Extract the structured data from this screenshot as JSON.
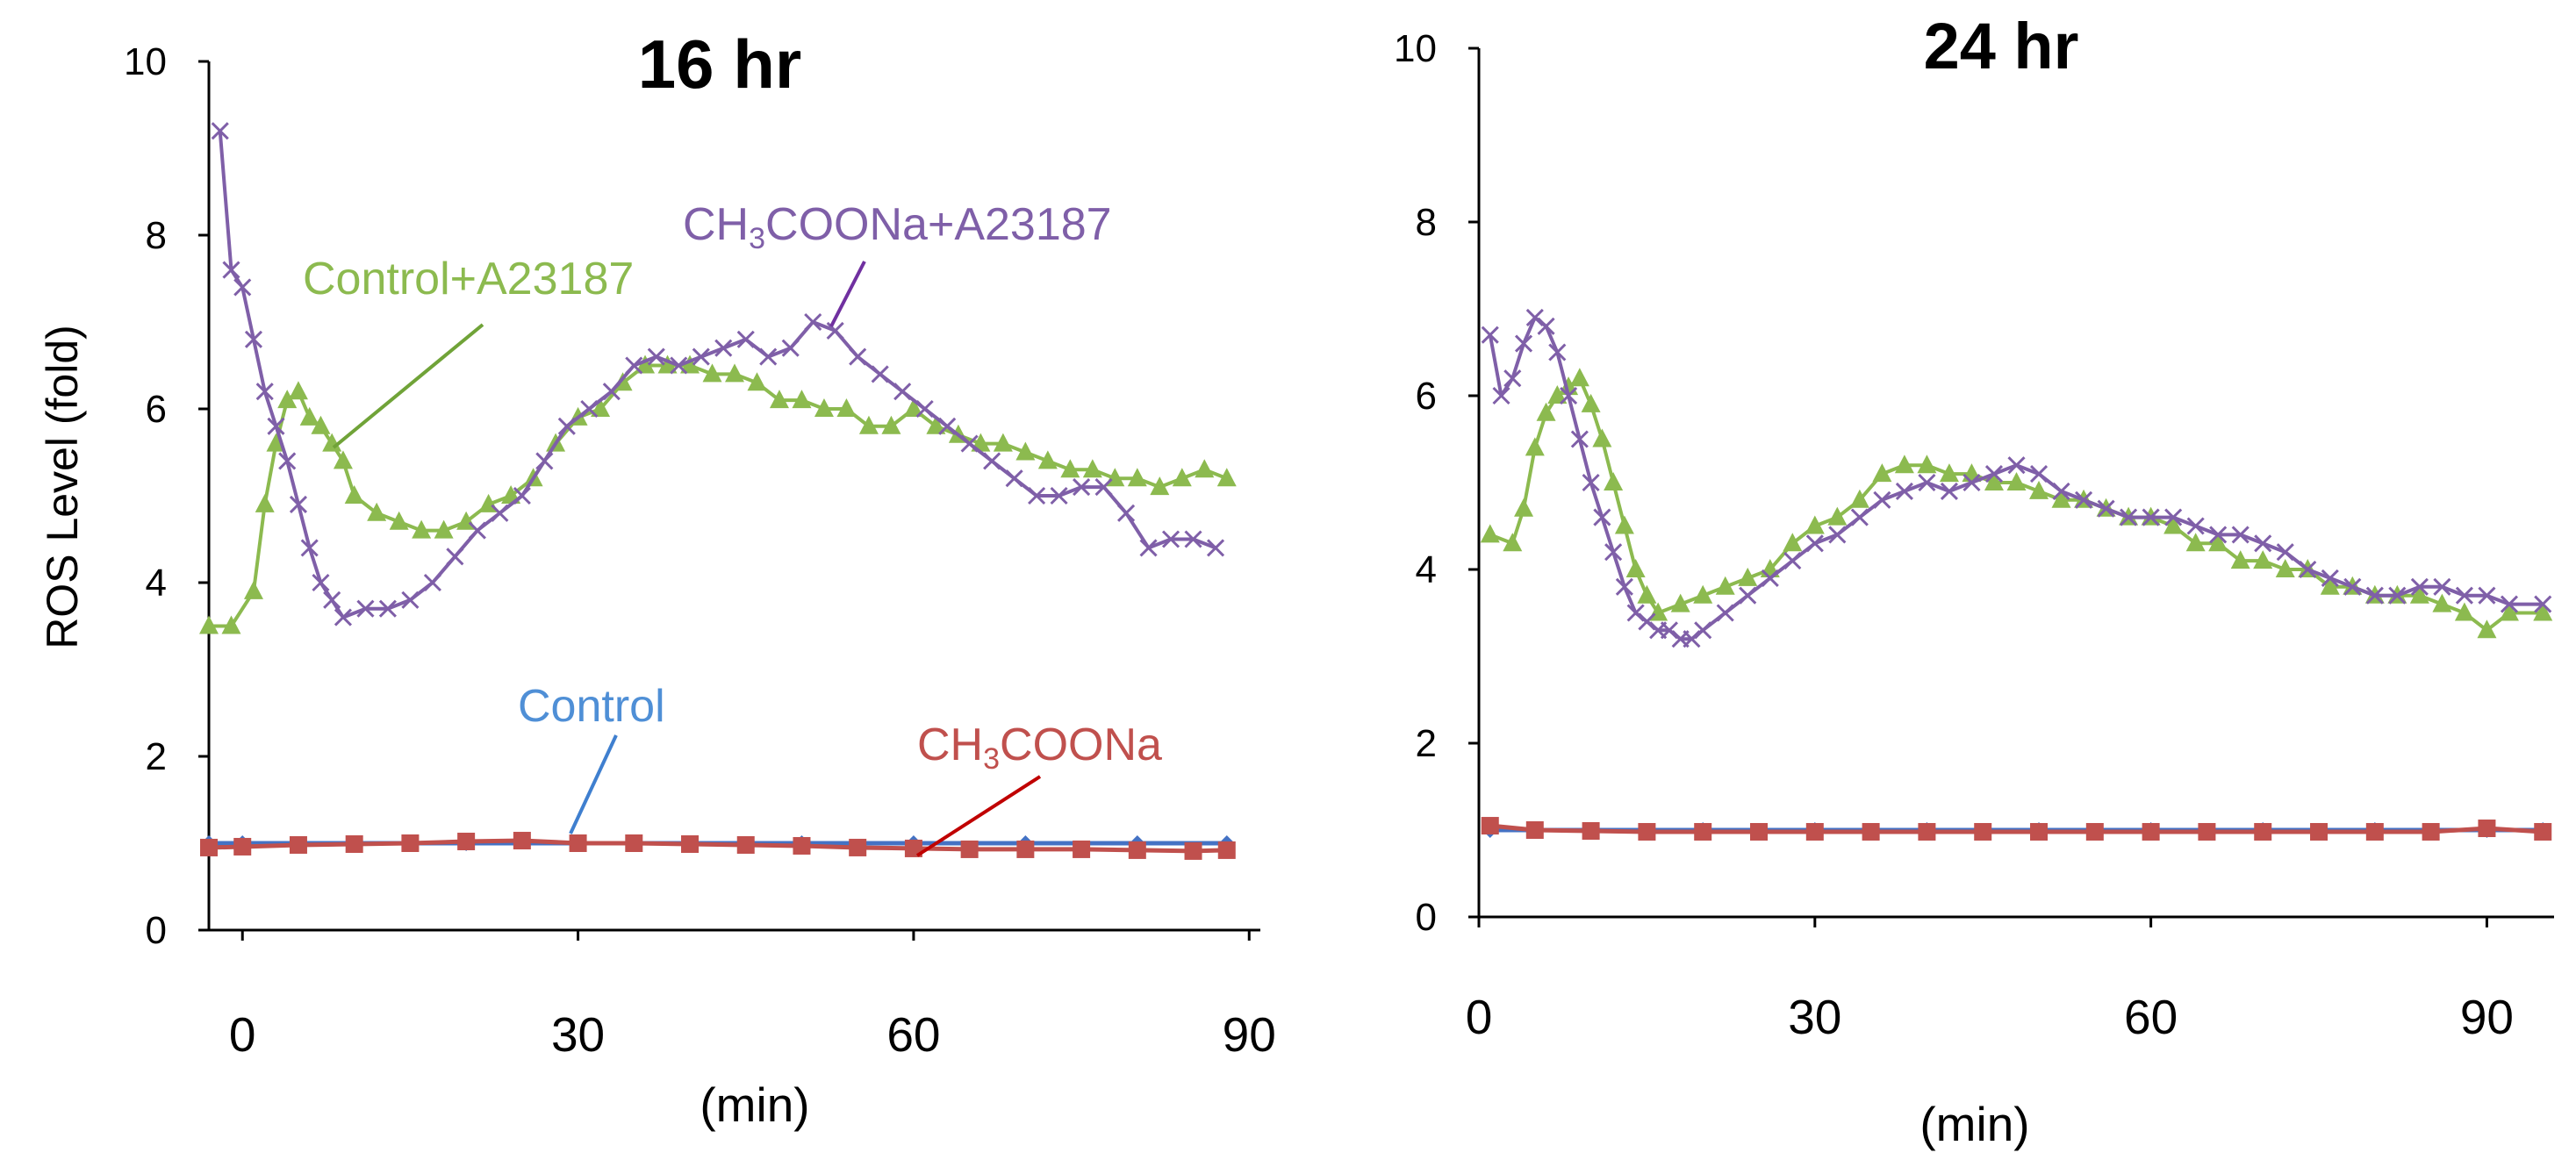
{
  "chart_data": [
    {
      "type": "line",
      "title": "16 hr",
      "xlabel": "(min)",
      "ylabel": "ROS  Level (fold)",
      "xlim": [
        -3,
        91
      ],
      "ylim": [
        0,
        10
      ],
      "xticks": [
        0,
        30,
        60,
        90
      ],
      "yticks": [
        0,
        2,
        4,
        6,
        8,
        10
      ],
      "grid": false,
      "series": [
        {
          "name": "Control",
          "color": "#4472c4",
          "marker": "diamond",
          "x": [
            -3,
            0,
            10,
            20,
            30,
            40,
            50,
            60,
            70,
            80,
            88
          ],
          "y": [
            1.0,
            1.0,
            1.0,
            1.0,
            1.0,
            1.0,
            1.0,
            1.0,
            1.0,
            1.0,
            1.0
          ]
        },
        {
          "name": "CH₃COONa",
          "color": "#c0504d",
          "marker": "square",
          "x": [
            -3,
            0,
            5,
            10,
            15,
            20,
            25,
            30,
            35,
            40,
            45,
            50,
            55,
            60,
            65,
            70,
            75,
            80,
            85,
            88
          ],
          "y": [
            0.95,
            0.96,
            0.98,
            0.99,
            1.0,
            1.02,
            1.03,
            1.0,
            1.0,
            0.99,
            0.98,
            0.97,
            0.95,
            0.94,
            0.93,
            0.93,
            0.93,
            0.92,
            0.91,
            0.92
          ]
        },
        {
          "name": "Control+A23187",
          "color": "#8cba4f",
          "marker": "triangle",
          "x": [
            -3,
            -1,
            1,
            2,
            3,
            4,
            5,
            6,
            7,
            8,
            9,
            10,
            12,
            14,
            16,
            18,
            20,
            22,
            24,
            26,
            28,
            30,
            32,
            34,
            36,
            38,
            40,
            42,
            44,
            46,
            48,
            50,
            52,
            54,
            56,
            58,
            60,
            62,
            64,
            66,
            68,
            70,
            72,
            74,
            76,
            78,
            80,
            82,
            84,
            86,
            88
          ],
          "y": [
            3.5,
            3.5,
            3.9,
            4.9,
            5.6,
            6.1,
            6.2,
            5.9,
            5.8,
            5.6,
            5.4,
            5.0,
            4.8,
            4.7,
            4.6,
            4.6,
            4.7,
            4.9,
            5.0,
            5.2,
            5.6,
            5.9,
            6.0,
            6.3,
            6.5,
            6.5,
            6.5,
            6.4,
            6.4,
            6.3,
            6.1,
            6.1,
            6.0,
            6.0,
            5.8,
            5.8,
            6.0,
            5.8,
            5.7,
            5.6,
            5.6,
            5.5,
            5.4,
            5.3,
            5.3,
            5.2,
            5.2,
            5.1,
            5.2,
            5.3,
            5.2
          ]
        },
        {
          "name": "CH₃COONa+A23187",
          "color": "#7f5fa8",
          "marker": "x",
          "x": [
            -2,
            -1,
            0,
            1,
            2,
            3,
            4,
            5,
            6,
            7,
            8,
            9,
            11,
            13,
            15,
            17,
            19,
            21,
            23,
            25,
            27,
            29,
            31,
            33,
            35,
            37,
            39,
            41,
            43,
            45,
            47,
            49,
            51,
            53,
            55,
            57,
            59,
            61,
            63,
            65,
            67,
            69,
            71,
            73,
            75,
            77,
            79,
            81,
            83,
            85,
            87
          ],
          "y": [
            9.2,
            7.6,
            7.4,
            6.8,
            6.2,
            5.8,
            5.4,
            4.9,
            4.4,
            4.0,
            3.8,
            3.6,
            3.7,
            3.7,
            3.8,
            4.0,
            4.3,
            4.6,
            4.8,
            5.0,
            5.4,
            5.8,
            6.0,
            6.2,
            6.5,
            6.6,
            6.5,
            6.6,
            6.7,
            6.8,
            6.6,
            6.7,
            7.0,
            6.9,
            6.6,
            6.4,
            6.2,
            6.0,
            5.8,
            5.6,
            5.4,
            5.2,
            5.0,
            5.0,
            5.1,
            5.1,
            4.8,
            4.4,
            4.5,
            4.5,
            4.4
          ]
        }
      ],
      "annotations": [
        {
          "text": "Control+A23187",
          "series": "Control+A23187"
        },
        {
          "text": "CH₃COONa+A23187",
          "series": "CH₃COONa+A23187"
        },
        {
          "text": "Control",
          "series": "Control"
        },
        {
          "text": "CH₃COONa",
          "series": "CH₃COONa"
        }
      ]
    },
    {
      "type": "line",
      "title": "24 hr",
      "xlabel": "(min)",
      "ylabel": "",
      "xlim": [
        0,
        96
      ],
      "ylim": [
        0,
        10
      ],
      "xticks": [
        0,
        30,
        60,
        90
      ],
      "yticks": [
        0,
        2,
        4,
        6,
        8,
        10
      ],
      "grid": false,
      "series": [
        {
          "name": "Control",
          "color": "#4472c4",
          "marker": "diamond",
          "x": [
            1,
            10,
            20,
            30,
            40,
            50,
            60,
            70,
            80,
            90,
            95
          ],
          "y": [
            1.0,
            1.0,
            1.0,
            1.0,
            1.0,
            1.0,
            1.0,
            1.0,
            1.0,
            1.0,
            1.0
          ]
        },
        {
          "name": "CH₃COONa",
          "color": "#c0504d",
          "marker": "square",
          "x": [
            1,
            5,
            10,
            15,
            20,
            25,
            30,
            35,
            40,
            45,
            50,
            55,
            60,
            65,
            70,
            75,
            80,
            85,
            90,
            95
          ],
          "y": [
            1.05,
            1.0,
            0.99,
            0.98,
            0.98,
            0.98,
            0.98,
            0.98,
            0.98,
            0.98,
            0.98,
            0.98,
            0.98,
            0.98,
            0.98,
            0.98,
            0.98,
            0.98,
            1.02,
            0.98
          ]
        },
        {
          "name": "Control+A23187",
          "color": "#8cba4f",
          "marker": "triangle",
          "x": [
            1,
            3,
            4,
            5,
            6,
            7,
            8,
            9,
            10,
            11,
            12,
            13,
            14,
            15,
            16,
            18,
            20,
            22,
            24,
            26,
            28,
            30,
            32,
            34,
            36,
            38,
            40,
            42,
            44,
            46,
            48,
            50,
            52,
            54,
            56,
            58,
            60,
            62,
            64,
            66,
            68,
            70,
            72,
            74,
            76,
            78,
            80,
            82,
            84,
            86,
            88,
            90,
            92,
            95
          ],
          "y": [
            4.4,
            4.3,
            4.7,
            5.4,
            5.8,
            6.0,
            6.1,
            6.2,
            5.9,
            5.5,
            5.0,
            4.5,
            4.0,
            3.7,
            3.5,
            3.6,
            3.7,
            3.8,
            3.9,
            4.0,
            4.3,
            4.5,
            4.6,
            4.8,
            5.1,
            5.2,
            5.2,
            5.1,
            5.1,
            5.0,
            5.0,
            4.9,
            4.8,
            4.8,
            4.7,
            4.6,
            4.6,
            4.5,
            4.3,
            4.3,
            4.1,
            4.1,
            4.0,
            4.0,
            3.8,
            3.8,
            3.7,
            3.7,
            3.7,
            3.6,
            3.5,
            3.3,
            3.5,
            3.5
          ]
        },
        {
          "name": "CH₃COONa+A23187",
          "color": "#7f5fa8",
          "marker": "x",
          "x": [
            1,
            2,
            3,
            4,
            5,
            6,
            7,
            8,
            9,
            10,
            11,
            12,
            13,
            14,
            15,
            16,
            17,
            18,
            19,
            20,
            22,
            24,
            26,
            28,
            30,
            32,
            34,
            36,
            38,
            40,
            42,
            44,
            46,
            48,
            50,
            52,
            54,
            56,
            58,
            60,
            62,
            64,
            66,
            68,
            70,
            72,
            74,
            76,
            78,
            80,
            82,
            84,
            86,
            88,
            90,
            92,
            95
          ],
          "y": [
            6.7,
            6.0,
            6.2,
            6.6,
            6.9,
            6.8,
            6.5,
            6.0,
            5.5,
            5.0,
            4.6,
            4.2,
            3.8,
            3.5,
            3.4,
            3.3,
            3.3,
            3.2,
            3.2,
            3.3,
            3.5,
            3.7,
            3.9,
            4.1,
            4.3,
            4.4,
            4.6,
            4.8,
            4.9,
            5.0,
            4.9,
            5.0,
            5.1,
            5.2,
            5.1,
            4.9,
            4.8,
            4.7,
            4.6,
            4.6,
            4.6,
            4.5,
            4.4,
            4.4,
            4.3,
            4.2,
            4.0,
            3.9,
            3.8,
            3.7,
            3.7,
            3.8,
            3.8,
            3.7,
            3.7,
            3.6,
            3.6
          ]
        }
      ]
    }
  ]
}
